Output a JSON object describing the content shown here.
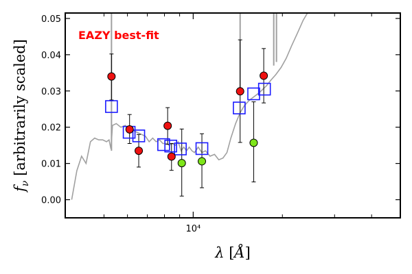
{
  "chart_data": {
    "type": "scatter",
    "title": "",
    "annotation": "EAZY best-fit",
    "xlabel": "λ [Å]",
    "ylabel": "f_ν [arbitrarily scaled]",
    "xscale": "log",
    "xlim": [
      3700,
      50000
    ],
    "ylim": [
      -0.005,
      0.0515
    ],
    "yticks": [
      0.0,
      0.01,
      0.02,
      0.03,
      0.04,
      0.05
    ],
    "ytick_labels": [
      "0.00",
      "0.01",
      "0.02",
      "0.03",
      "0.04",
      "0.05"
    ],
    "xtick_major": [
      10000
    ],
    "xtick_labels": [
      "10⁴"
    ],
    "xtick_minor": [
      5000,
      6000,
      7000,
      8000,
      9000,
      20000,
      30000,
      40000
    ],
    "grid": false,
    "colors": {
      "model": "#a0a0a0",
      "observed_fill": "#ee1111",
      "alt_fill": "#7ee51a",
      "model_photometry": "#1a1aff",
      "annotation": "#ff0000"
    },
    "series": [
      {
        "type": "line",
        "points": [
          [
            3890,
            0.0
          ],
          [
            4050,
            0.008
          ],
          [
            4200,
            0.012
          ],
          [
            4350,
            0.01
          ],
          [
            4500,
            0.016
          ],
          [
            4650,
            0.017
          ],
          [
            4800,
            0.0165
          ],
          [
            4950,
            0.0165
          ],
          [
            5100,
            0.016
          ],
          [
            5200,
            0.0165
          ],
          [
            5280,
            0.014
          ],
          [
            5340,
            0.0205
          ],
          [
            5500,
            0.021
          ],
          [
            5700,
            0.02
          ],
          [
            5900,
            0.0205
          ],
          [
            6100,
            0.019
          ],
          [
            6300,
            0.019
          ],
          [
            6500,
            0.0185
          ],
          [
            6700,
            0.018
          ],
          [
            6900,
            0.0175
          ],
          [
            7100,
            0.016
          ],
          [
            7300,
            0.017
          ],
          [
            7500,
            0.016
          ],
          [
            7700,
            0.0165
          ],
          [
            7900,
            0.0155
          ],
          [
            8100,
            0.0155
          ],
          [
            8300,
            0.015
          ],
          [
            8500,
            0.0155
          ],
          [
            8700,
            0.015
          ],
          [
            8900,
            0.016
          ],
          [
            9100,
            0.0135
          ],
          [
            9300,
            0.0145
          ],
          [
            9500,
            0.0135
          ],
          [
            9700,
            0.0145
          ],
          [
            9900,
            0.0135
          ],
          [
            10100,
            0.013
          ],
          [
            10400,
            0.0145
          ],
          [
            10700,
            0.013
          ],
          [
            11000,
            0.0135
          ],
          [
            11400,
            0.012
          ],
          [
            11800,
            0.0125
          ],
          [
            12200,
            0.011
          ],
          [
            12600,
            0.0115
          ],
          [
            13000,
            0.013
          ],
          [
            13400,
            0.017
          ],
          [
            13900,
            0.021
          ],
          [
            14400,
            0.024
          ],
          [
            14900,
            0.026
          ],
          [
            15500,
            0.0275
          ],
          [
            16100,
            0.0285
          ],
          [
            16700,
            0.0295
          ],
          [
            17200,
            0.0305
          ],
          [
            17700,
            0.0315
          ],
          [
            18300,
            0.033
          ],
          [
            19000,
            0.0345
          ],
          [
            19800,
            0.0365
          ],
          [
            20600,
            0.039
          ],
          [
            21500,
            0.0425
          ],
          [
            22500,
            0.046
          ],
          [
            23500,
            0.0495
          ],
          [
            24500,
            0.052
          ]
        ]
      },
      {
        "type": "emission_lines",
        "lines": [
          [
            5300,
            0.0135,
            0.06
          ],
          [
            14400,
            0.03,
            0.06
          ],
          [
            18700,
            0.037,
            0.06
          ],
          [
            19100,
            0.038,
            0.06
          ]
        ]
      },
      {
        "type": "points",
        "marker": "circle",
        "fill": "red",
        "points": [
          {
            "x": 5300,
            "y": 0.034,
            "yerr": [
              0.0065,
              0.0062
            ]
          },
          {
            "x": 6100,
            "y": 0.0194,
            "yerr": [
              0.0039,
              0.0041
            ]
          },
          {
            "x": 6550,
            "y": 0.0135,
            "yerr": [
              0.0045,
              0.0045
            ]
          },
          {
            "x": 8200,
            "y": 0.0204,
            "yerr": [
              0.0051,
              0.005
            ]
          },
          {
            "x": 8450,
            "y": 0.0119,
            "yerr": [
              0.0038,
              0.0036
            ]
          },
          {
            "x": 14400,
            "y": 0.0299,
            "yerr": [
              0.0141,
              0.0142
            ]
          },
          {
            "x": 17300,
            "y": 0.0342,
            "yerr": [
              0.0075,
              0.0075
            ]
          }
        ]
      },
      {
        "type": "points",
        "marker": "circle",
        "fill": "green",
        "points": [
          {
            "x": 9150,
            "y": 0.0101,
            "yerr": [
              0.0091,
              0.0094
            ]
          },
          {
            "x": 10700,
            "y": 0.0106,
            "yerr": [
              0.0073,
              0.0076
            ]
          },
          {
            "x": 16000,
            "y": 0.0157,
            "yerr": [
              0.0108,
              0.0113
            ]
          }
        ]
      },
      {
        "type": "points",
        "marker": "square",
        "fill": "none",
        "points": [
          {
            "x": 5300,
            "y": 0.0257
          },
          {
            "x": 6080,
            "y": 0.0186
          },
          {
            "x": 6550,
            "y": 0.0176
          },
          {
            "x": 7950,
            "y": 0.0152
          },
          {
            "x": 8400,
            "y": 0.0148
          },
          {
            "x": 9050,
            "y": 0.014
          },
          {
            "x": 10700,
            "y": 0.0141
          },
          {
            "x": 14300,
            "y": 0.0253
          },
          {
            "x": 16000,
            "y": 0.0292
          },
          {
            "x": 17400,
            "y": 0.0305
          }
        ]
      }
    ]
  }
}
